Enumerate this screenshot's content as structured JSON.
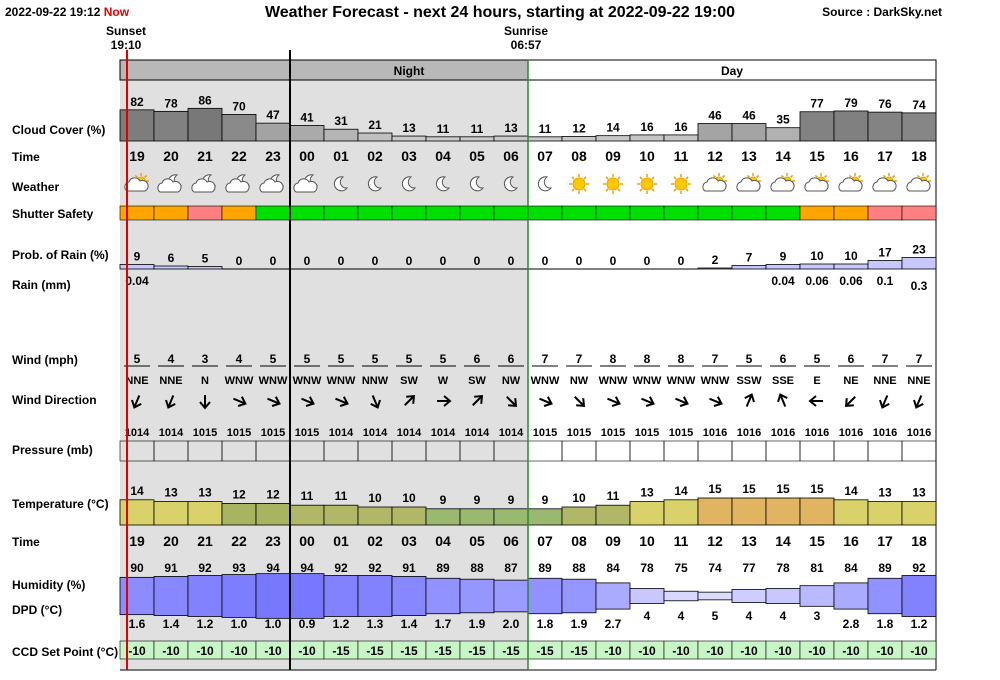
{
  "header": {
    "datetime": "2022-09-22 19:12",
    "now_label": "Now",
    "title": "Weather Forecast - next 24 hours, starting at 2022-09-22 19:00",
    "source": "Source : DarkSky.net",
    "sunset_label": "Sunset",
    "sunset_time": "19:10",
    "sunrise_label": "Sunrise",
    "sunrise_time": "06:57"
  },
  "bands": {
    "night": "Night",
    "day": "Day"
  },
  "row_labels": {
    "cloud_cover": "Cloud Cover (%)",
    "time": "Time",
    "weather": "Weather",
    "shutter": "Shutter Safety",
    "rain_prob": "Prob. of Rain (%)",
    "rain": "Rain (mm)",
    "wind": "Wind (mph)",
    "wind_dir": "Wind Direction",
    "pressure": "Pressure (mb)",
    "temperature": "Temperature (°C)",
    "time2": "Time",
    "humidity": "Humidity (%)",
    "dpd": "DPD (°C)",
    "ccd": "CCD Set Point (°C)"
  },
  "colors": {
    "night_bg": "#e0e0e0",
    "now_line": "#e00000",
    "sunrise_line": "#2a8a2a",
    "shutter_orange": "#ffa500",
    "shutter_red": "#ff8080",
    "shutter_green": "#00e000",
    "ccd_bg": "#c8f5c8",
    "humidity_blue": "#6a6aff",
    "sun": "#ffc800"
  },
  "chart_data": {
    "type": "table",
    "title": "Weather Forecast - next 24 hours, starting at 2022-09-22 19:00",
    "hours": [
      "19",
      "20",
      "21",
      "22",
      "23",
      "00",
      "01",
      "02",
      "03",
      "04",
      "05",
      "06",
      "07",
      "08",
      "09",
      "10",
      "11",
      "12",
      "13",
      "14",
      "15",
      "16",
      "17",
      "18"
    ],
    "night_hours": [
      "19",
      "20",
      "21",
      "22",
      "23",
      "00",
      "01",
      "02",
      "03",
      "04",
      "05",
      "06"
    ],
    "cloud_cover": [
      82,
      78,
      86,
      70,
      47,
      41,
      31,
      21,
      13,
      11,
      11,
      13,
      11,
      12,
      14,
      16,
      16,
      46,
      46,
      35,
      77,
      79,
      76,
      74
    ],
    "weather_icons": [
      "partly-cloudy-day",
      "partly-cloudy-night",
      "partly-cloudy-night",
      "partly-cloudy-night",
      "partly-cloudy-night",
      "partly-cloudy-night",
      "clear-night",
      "clear-night",
      "clear-night",
      "clear-night",
      "clear-night",
      "clear-night",
      "clear-night",
      "clear-day",
      "clear-day",
      "clear-day",
      "clear-day",
      "partly-cloudy-day",
      "partly-cloudy-day",
      "partly-cloudy-day",
      "partly-cloudy-day",
      "partly-cloudy-day",
      "partly-cloudy-day",
      "partly-cloudy-day"
    ],
    "shutter_safety": [
      "orange",
      "orange",
      "red",
      "orange",
      "green",
      "green",
      "green",
      "green",
      "green",
      "green",
      "green",
      "green",
      "green",
      "green",
      "green",
      "green",
      "green",
      "green",
      "green",
      "green",
      "orange",
      "orange",
      "red",
      "red"
    ],
    "rain_probability": [
      9,
      6,
      5,
      0,
      0,
      0,
      0,
      0,
      0,
      0,
      0,
      0,
      0,
      0,
      0,
      0,
      0,
      2,
      7,
      9,
      10,
      10,
      17,
      23
    ],
    "rain_mm": [
      "0.04",
      "",
      "",
      "",
      "",
      "",
      "",
      "",
      "",
      "",
      "",
      "",
      "",
      "",
      "",
      "",
      "",
      "",
      "",
      "0.04",
      "0.06",
      "0.06",
      "0.1",
      "0.3"
    ],
    "wind_mph": [
      5,
      4,
      3,
      4,
      5,
      5,
      5,
      5,
      5,
      5,
      6,
      6,
      7,
      7,
      8,
      8,
      8,
      7,
      5,
      6,
      5,
      6,
      7,
      7
    ],
    "wind_direction": [
      "NNE",
      "NNE",
      "N",
      "WNW",
      "WNW",
      "WNW",
      "WNW",
      "NNW",
      "SW",
      "W",
      "SW",
      "NW",
      "WNW",
      "NW",
      "WNW",
      "WNW",
      "WNW",
      "WNW",
      "SSW",
      "SSE",
      "E",
      "NE",
      "NNE",
      "NNE"
    ],
    "pressure_mb": [
      1014,
      1014,
      1015,
      1015,
      1015,
      1015,
      1014,
      1014,
      1014,
      1014,
      1014,
      1014,
      1015,
      1015,
      1015,
      1015,
      1015,
      1016,
      1016,
      1016,
      1016,
      1016,
      1016,
      1016
    ],
    "temperature_c": [
      14,
      13,
      13,
      12,
      12,
      11,
      11,
      10,
      10,
      9,
      9,
      9,
      9,
      10,
      11,
      13,
      14,
      15,
      15,
      15,
      15,
      14,
      13,
      13
    ],
    "humidity_pct": [
      90,
      91,
      92,
      93,
      94,
      94,
      92,
      92,
      91,
      89,
      88,
      87,
      89,
      88,
      84,
      78,
      75,
      74,
      77,
      78,
      81,
      84,
      89,
      92
    ],
    "dpd_c": [
      "1.6",
      "1.4",
      "1.2",
      "1.0",
      "1.0",
      "0.9",
      "1.2",
      "1.3",
      "1.4",
      "1.7",
      "1.9",
      "2.0",
      "1.8",
      "1.9",
      "2.7",
      "4",
      "4",
      "5",
      "4",
      "4",
      "3",
      "2.8",
      "1.8",
      "1.2"
    ],
    "ccd_set_point_c": [
      -10,
      -10,
      -10,
      -10,
      -10,
      -10,
      -15,
      -15,
      -15,
      -15,
      -15,
      -15,
      -15,
      -15,
      -10,
      -10,
      -10,
      -10,
      -10,
      -10,
      -10,
      -10,
      -10,
      -10
    ]
  }
}
